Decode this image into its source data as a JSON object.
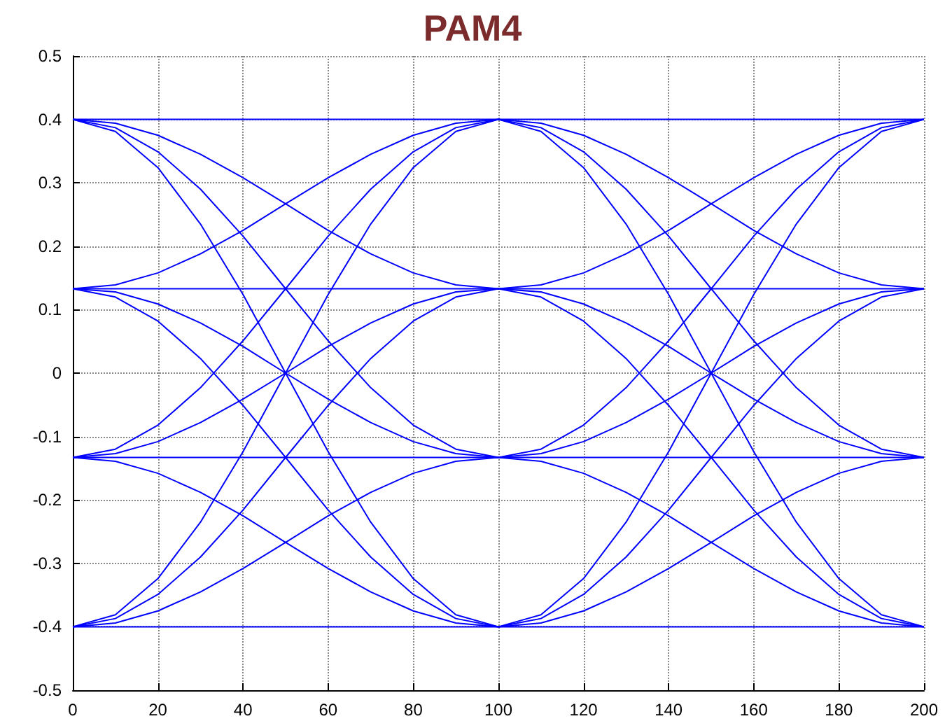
{
  "chart_data": {
    "type": "line",
    "title": "PAM4",
    "x": [
      0,
      10,
      20,
      30,
      40,
      50,
      60,
      70,
      80,
      90,
      100,
      110,
      120,
      130,
      140,
      150,
      160,
      170,
      180,
      190,
      200
    ],
    "series": [
      {
        "color": "#0000ff",
        "values": [
          -0.4,
          -0.394,
          -0.375,
          -0.345,
          -0.308,
          -0.267,
          -0.225,
          -0.188,
          -0.158,
          -0.139,
          -0.133,
          -0.12,
          -0.082,
          -0.023,
          0.051,
          0.133,
          0.216,
          0.29,
          0.349,
          0.387,
          0.4
        ]
      },
      {
        "color": "#0000ff",
        "values": [
          -0.4,
          -0.387,
          -0.349,
          -0.29,
          -0.216,
          -0.133,
          -0.051,
          0.023,
          0.082,
          0.12,
          0.133,
          0.128,
          0.109,
          0.079,
          0.042,
          0,
          -0.041,
          -0.078,
          -0.108,
          -0.127,
          -0.133
        ]
      },
      {
        "color": "#0000ff",
        "values": [
          -0.4,
          -0.381,
          -0.324,
          -0.235,
          -0.124,
          0,
          0.124,
          0.235,
          0.324,
          0.381,
          0.4,
          0.394,
          0.375,
          0.345,
          0.308,
          0.267,
          0.225,
          0.188,
          0.158,
          0.139,
          0.133
        ]
      },
      {
        "color": "#0000ff",
        "values": [
          -0.133,
          -0.139,
          -0.158,
          -0.188,
          -0.225,
          -0.267,
          -0.308,
          -0.345,
          -0.375,
          -0.394,
          -0.4,
          -0.387,
          -0.349,
          -0.29,
          -0.216,
          -0.133,
          -0.051,
          0.023,
          0.082,
          0.12,
          0.133
        ]
      },
      {
        "color": "#0000ff",
        "values": [
          -0.133,
          -0.127,
          -0.108,
          -0.078,
          -0.041,
          0,
          0.042,
          0.079,
          0.109,
          0.128,
          0.133,
          0.139,
          0.158,
          0.188,
          0.225,
          0.267,
          0.308,
          0.345,
          0.375,
          0.394,
          0.4
        ]
      },
      {
        "color": "#0000ff",
        "values": [
          -0.133,
          -0.12,
          -0.082,
          -0.023,
          0.051,
          0.133,
          0.216,
          0.29,
          0.349,
          0.387,
          0.4,
          0.381,
          0.324,
          0.235,
          0.124,
          0,
          -0.124,
          -0.235,
          -0.324,
          -0.381,
          -0.4
        ]
      },
      {
        "color": "#0000ff",
        "values": [
          0.133,
          0.12,
          0.082,
          0.023,
          -0.051,
          -0.133,
          -0.216,
          -0.29,
          -0.349,
          -0.387,
          -0.4,
          -0.381,
          -0.324,
          -0.235,
          -0.124,
          0,
          0.124,
          0.235,
          0.324,
          0.381,
          0.4
        ]
      },
      {
        "color": "#0000ff",
        "values": [
          0.133,
          0.128,
          0.109,
          0.079,
          0.042,
          0,
          -0.041,
          -0.078,
          -0.108,
          -0.127,
          -0.133,
          -0.139,
          -0.158,
          -0.188,
          -0.225,
          -0.267,
          -0.308,
          -0.345,
          -0.375,
          -0.394,
          -0.4
        ]
      },
      {
        "color": "#0000ff",
        "values": [
          0.133,
          0.139,
          0.158,
          0.188,
          0.225,
          0.267,
          0.308,
          0.345,
          0.375,
          0.394,
          0.4,
          0.387,
          0.349,
          0.29,
          0.216,
          0.133,
          0.051,
          -0.023,
          -0.082,
          -0.12,
          -0.133
        ]
      },
      {
        "color": "#0000ff",
        "values": [
          0.4,
          0.381,
          0.324,
          0.235,
          0.124,
          0,
          -0.124,
          -0.235,
          -0.324,
          -0.381,
          -0.4,
          -0.394,
          -0.375,
          -0.345,
          -0.308,
          -0.267,
          -0.225,
          -0.188,
          -0.158,
          -0.139,
          -0.133
        ]
      },
      {
        "color": "#0000ff",
        "values": [
          0.4,
          0.387,
          0.349,
          0.29,
          0.216,
          0.133,
          0.051,
          -0.023,
          -0.082,
          -0.12,
          -0.133,
          -0.127,
          -0.108,
          -0.078,
          -0.041,
          0,
          0.042,
          0.079,
          0.109,
          0.128,
          0.133
        ]
      },
      {
        "color": "#0000ff",
        "values": [
          0.4,
          0.394,
          0.375,
          0.345,
          0.308,
          0.267,
          0.225,
          0.188,
          0.158,
          0.139,
          0.133,
          0.12,
          0.082,
          0.023,
          -0.051,
          -0.133,
          -0.216,
          -0.29,
          -0.349,
          -0.387,
          -0.4
        ]
      },
      {
        "color": "#0000ff",
        "values": [
          -0.4,
          -0.4,
          -0.4,
          -0.4,
          -0.4,
          -0.4,
          -0.4,
          -0.4,
          -0.4,
          -0.4,
          -0.4,
          -0.4,
          -0.4,
          -0.4,
          -0.4,
          -0.4,
          -0.4,
          -0.4,
          -0.4,
          -0.4,
          -0.4
        ]
      },
      {
        "color": "#0000ff",
        "values": [
          -0.133,
          -0.133,
          -0.133,
          -0.133,
          -0.133,
          -0.133,
          -0.133,
          -0.133,
          -0.133,
          -0.133,
          -0.133,
          -0.133,
          -0.133,
          -0.133,
          -0.133,
          -0.133,
          -0.133,
          -0.133,
          -0.133,
          -0.133,
          -0.133
        ]
      },
      {
        "color": "#0000ff",
        "values": [
          0.133,
          0.133,
          0.133,
          0.133,
          0.133,
          0.133,
          0.133,
          0.133,
          0.133,
          0.133,
          0.133,
          0.133,
          0.133,
          0.133,
          0.133,
          0.133,
          0.133,
          0.133,
          0.133,
          0.133,
          0.133
        ]
      },
      {
        "color": "#0000ff",
        "values": [
          0.4,
          0.4,
          0.4,
          0.4,
          0.4,
          0.4,
          0.4,
          0.4,
          0.4,
          0.4,
          0.4,
          0.4,
          0.4,
          0.4,
          0.4,
          0.4,
          0.4,
          0.4,
          0.4,
          0.4,
          0.4
        ]
      }
    ],
    "xlim": [
      0,
      200
    ],
    "xticks": [
      0,
      20,
      40,
      60,
      80,
      100,
      120,
      140,
      160,
      180,
      200
    ],
    "ylim": [
      -0.5,
      0.5
    ],
    "yticks": [
      -0.5,
      -0.4,
      -0.3,
      -0.2,
      -0.1,
      0,
      0.1,
      0.2,
      0.3,
      0.4,
      0.5
    ],
    "grid": true,
    "marker": "none",
    "line_style": "solid"
  }
}
